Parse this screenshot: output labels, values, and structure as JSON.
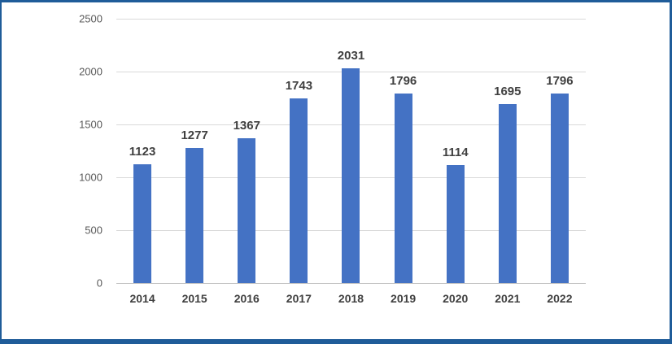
{
  "chart_data": {
    "type": "bar",
    "title": "",
    "xlabel": "",
    "ylabel": "",
    "categories": [
      "2014",
      "2015",
      "2016",
      "2017",
      "2018",
      "2019",
      "2020",
      "2021",
      "2022"
    ],
    "values": [
      1123,
      1277,
      1367,
      1743,
      2031,
      1796,
      1114,
      1695,
      1796
    ],
    "ylim": [
      0,
      2500
    ],
    "yticks": [
      0,
      500,
      1000,
      1500,
      2000,
      2500
    ],
    "grid": true,
    "legend": "none",
    "data_labels": true
  },
  "colors": {
    "bar_fill": "#4472C4",
    "frame_border": "#1F5C99",
    "gridline": "#D9D9D9",
    "axis_line": "#BFBFBF",
    "ytick_label": "#595959",
    "xtick_label": "#404040",
    "data_label": "#404040",
    "background": "#FFFFFF"
  }
}
